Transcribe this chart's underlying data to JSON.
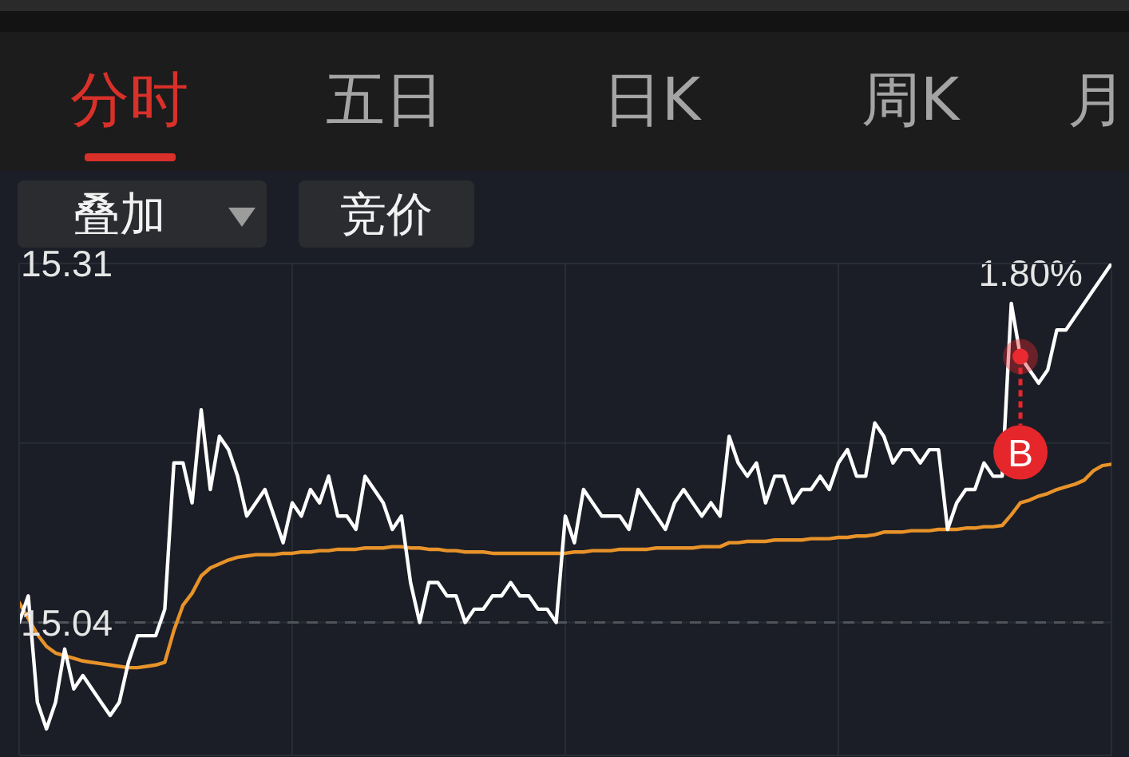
{
  "chart_data": {
    "type": "line",
    "categories": [
      null,
      null,
      null,
      null,
      null,
      null,
      null,
      null,
      null,
      null,
      null,
      null,
      null,
      null,
      null,
      null,
      null,
      null,
      null,
      null,
      null,
      null,
      null,
      null,
      null,
      null,
      null,
      null,
      null,
      null,
      null,
      null,
      null,
      null,
      null,
      null,
      null,
      null,
      null,
      null,
      null,
      null,
      null,
      null,
      null,
      null,
      null,
      null,
      null,
      null,
      null,
      null,
      null,
      null,
      null,
      null,
      null,
      null,
      null,
      null,
      null,
      null,
      null,
      null,
      null,
      null,
      null,
      null,
      null,
      null,
      null,
      null,
      null,
      null,
      null,
      null,
      null,
      null,
      null,
      null,
      null,
      null,
      null,
      null,
      null,
      null,
      null,
      null,
      null,
      null,
      null,
      null,
      null,
      null,
      null,
      null,
      null,
      null,
      null,
      null,
      null,
      null,
      null,
      null,
      null,
      null,
      null,
      null,
      null,
      null,
      null,
      null,
      null,
      null,
      null,
      null,
      null,
      null,
      null,
      null,
      null
    ],
    "series": [
      {
        "color": "#ffffff",
        "values": [
          15.04,
          15.06,
          14.98,
          14.96,
          14.98,
          15.02,
          14.99,
          15.0,
          14.99,
          14.98,
          14.97,
          14.98,
          15.01,
          15.03,
          15.03,
          15.03,
          15.05,
          15.16,
          15.16,
          15.13,
          15.2,
          15.14,
          15.18,
          15.17,
          15.15,
          15.12,
          15.13,
          15.14,
          15.12,
          15.1,
          15.13,
          15.12,
          15.14,
          15.13,
          15.15,
          15.12,
          15.12,
          15.11,
          15.15,
          15.14,
          15.13,
          15.11,
          15.12,
          15.07,
          15.04,
          15.07,
          15.07,
          15.06,
          15.06,
          15.04,
          15.05,
          15.05,
          15.06,
          15.06,
          15.07,
          15.06,
          15.06,
          15.05,
          15.05,
          15.04,
          15.12,
          15.1,
          15.14,
          15.13,
          15.12,
          15.12,
          15.12,
          15.11,
          15.14,
          15.13,
          15.12,
          15.11,
          15.13,
          15.14,
          15.13,
          15.12,
          15.13,
          15.12,
          15.18,
          15.16,
          15.15,
          15.16,
          15.13,
          15.15,
          15.15,
          15.13,
          15.14,
          15.14,
          15.15,
          15.14,
          15.16,
          15.17,
          15.15,
          15.15,
          15.19,
          15.18,
          15.16,
          15.17,
          15.17,
          15.16,
          15.17,
          15.17,
          15.11,
          15.13,
          15.14,
          15.14,
          15.16,
          15.15,
          15.15,
          15.28,
          15.24,
          15.23,
          15.22,
          15.23,
          15.26,
          15.26,
          15.27,
          15.28,
          15.29,
          15.3,
          15.31
        ]
      },
      {
        "color": "#e8932a",
        "values": [
          15.055,
          15.043,
          15.031,
          15.022,
          15.017,
          15.015,
          15.013,
          15.011,
          15.01,
          15.009,
          15.008,
          15.007,
          15.006,
          15.006,
          15.007,
          15.008,
          15.01,
          15.034,
          15.053,
          15.062,
          15.075,
          15.081,
          15.084,
          15.087,
          15.089,
          15.09,
          15.091,
          15.091,
          15.091,
          15.092,
          15.092,
          15.093,
          15.093,
          15.094,
          15.094,
          15.095,
          15.095,
          15.095,
          15.096,
          15.096,
          15.096,
          15.097,
          15.097,
          15.096,
          15.096,
          15.095,
          15.095,
          15.094,
          15.094,
          15.093,
          15.093,
          15.093,
          15.092,
          15.092,
          15.092,
          15.092,
          15.092,
          15.092,
          15.092,
          15.092,
          15.092,
          15.093,
          15.093,
          15.094,
          15.094,
          15.094,
          15.095,
          15.095,
          15.095,
          15.095,
          15.096,
          15.096,
          15.096,
          15.096,
          15.096,
          15.097,
          15.097,
          15.097,
          15.1,
          15.1,
          15.101,
          15.101,
          15.101,
          15.102,
          15.102,
          15.102,
          15.102,
          15.103,
          15.103,
          15.103,
          15.104,
          15.104,
          15.105,
          15.105,
          15.106,
          15.108,
          15.108,
          15.108,
          15.109,
          15.109,
          15.109,
          15.11,
          15.11,
          15.11,
          15.111,
          15.111,
          15.112,
          15.112,
          15.113,
          15.121,
          15.13,
          15.132,
          15.135,
          15.137,
          15.14,
          15.142,
          15.144,
          15.147,
          15.154,
          15.158,
          15.159
        ]
      }
    ],
    "ylim": [
      14.94,
      15.31
    ],
    "yticks": [
      15.31,
      {
        "value": 15.175,
        "label": null
      },
      15.04
    ],
    "tick_labels": "y",
    "grid": true,
    "ref_lines": [
      {
        "axis": "y",
        "value": 15.04,
        "color": "#50535a",
        "line_style": "dashed"
      }
    ],
    "annotations": [
      "分时",
      "五日",
      "日K",
      "周K",
      "月",
      "叠加",
      "竞价",
      "1.80%",
      {
        "text": "B",
        "y": 15.24
      }
    ]
  }
}
